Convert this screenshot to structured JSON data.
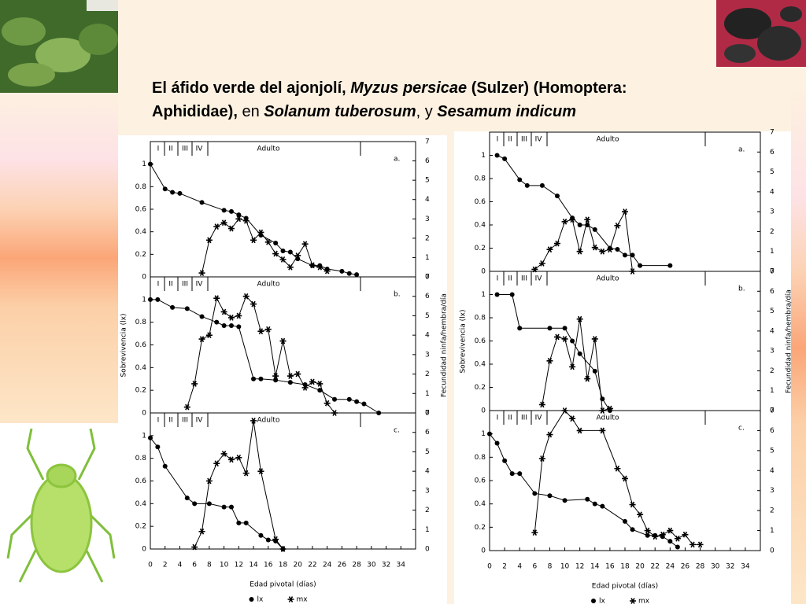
{
  "slide": {
    "title": [
      [
        {
          "text": "El áfido verde del ajonjolí, ",
          "bold": true,
          "italic": false
        },
        {
          "text": "Myzus persicae",
          "bold": true,
          "italic": true
        },
        {
          "text": " (Sulzer) (Homoptera:",
          "bold": true,
          "italic": false
        }
      ],
      [
        {
          "text": "Aphididae),",
          "bold": true,
          "italic": false
        },
        {
          "text": " en ",
          "bold": false,
          "italic": false
        },
        {
          "text": "Solanum tuberosum",
          "bold": true,
          "italic": true
        },
        {
          "text": ", y ",
          "bold": false,
          "italic": false
        },
        {
          "text": "Sesamum indicum",
          "bold": true,
          "italic": true
        }
      ]
    ]
  },
  "chart_data": [
    {
      "type": "line",
      "panel": "a.",
      "stages": [
        "I",
        "II",
        "III",
        "IV",
        "Adulto"
      ],
      "xlim": [
        0,
        36
      ],
      "ylim": [
        0,
        1.2
      ],
      "yticks": [
        0,
        0.2,
        0.4,
        0.6,
        0.8,
        1
      ],
      "y2lim": [
        0,
        7
      ],
      "y2ticks": [
        0,
        1,
        2,
        3,
        4,
        5,
        6,
        7
      ],
      "series": [
        {
          "color": "#000000",
          "marker": "circle",
          "x": [
            0,
            2,
            3,
            4,
            7,
            10,
            11,
            12,
            13,
            15,
            17,
            18,
            19,
            20,
            22,
            23,
            24,
            26,
            27,
            28
          ],
          "values": [
            1.0,
            0.78,
            0.75,
            0.74,
            0.66,
            0.59,
            0.58,
            0.55,
            0.52,
            0.37,
            0.3,
            0.23,
            0.22,
            0.16,
            0.1,
            0.1,
            0.07,
            0.05,
            0.03,
            0.02
          ]
        },
        {
          "color": "#000000",
          "marker": "star",
          "axis": "y2",
          "x": [
            7,
            8,
            9,
            10,
            11,
            12,
            13,
            14,
            15,
            16,
            17,
            18,
            19,
            20,
            21,
            22,
            23,
            24
          ],
          "values": [
            0.2,
            1.9,
            2.6,
            2.8,
            2.5,
            3.0,
            2.9,
            1.9,
            2.3,
            1.8,
            1.2,
            0.9,
            0.5,
            1.1,
            1.7,
            0.6,
            0.5,
            0.3
          ]
        }
      ]
    },
    {
      "type": "line",
      "panel": "b.",
      "stages": [
        "I",
        "II",
        "III",
        "IV",
        "Adulto"
      ],
      "xlim": [
        0,
        36
      ],
      "ylim": [
        0,
        1.2
      ],
      "yticks": [
        0,
        0.2,
        0.4,
        0.6,
        0.8,
        1
      ],
      "y2lim": [
        0,
        7
      ],
      "y2ticks": [
        0,
        1,
        2,
        3,
        4,
        5,
        6,
        7
      ],
      "y_label": "Sobrevivencia (lx)",
      "y2_label": "Fecundidad ninfa/hembra/día",
      "series": [
        {
          "color": "#000000",
          "marker": "circle",
          "x": [
            0,
            1,
            3,
            5,
            7,
            9,
            10,
            11,
            12,
            14,
            15,
            17,
            19,
            21,
            23,
            25,
            27,
            28,
            29,
            31
          ],
          "values": [
            1.0,
            1.0,
            0.93,
            0.92,
            0.85,
            0.8,
            0.77,
            0.77,
            0.76,
            0.3,
            0.3,
            0.29,
            0.27,
            0.25,
            0.2,
            0.12,
            0.12,
            0.1,
            0.08,
            0.0
          ]
        },
        {
          "color": "#000000",
          "marker": "star",
          "axis": "y2",
          "x": [
            5,
            6,
            7,
            8,
            9,
            10,
            11,
            12,
            13,
            14,
            15,
            16,
            17,
            18,
            19,
            20,
            21,
            22,
            23,
            24,
            25
          ],
          "values": [
            0.3,
            1.5,
            3.8,
            4.0,
            5.9,
            5.2,
            4.9,
            5.0,
            6.0,
            5.6,
            4.2,
            4.3,
            1.9,
            3.7,
            1.9,
            2.0,
            1.3,
            1.6,
            1.5,
            0.5,
            0.0
          ]
        }
      ]
    },
    {
      "type": "line",
      "panel": "c.",
      "stages": [
        "I",
        "II",
        "III",
        "IV",
        "Adulto"
      ],
      "xlim": [
        0,
        36
      ],
      "ylim": [
        0,
        1.2
      ],
      "yticks": [
        0,
        0.2,
        0.4,
        0.6,
        0.8,
        1
      ],
      "y2lim": [
        0,
        7
      ],
      "y2ticks": [
        0,
        1,
        2,
        3,
        4,
        5,
        6,
        7
      ],
      "xticks": [
        0,
        2,
        4,
        6,
        8,
        10,
        12,
        14,
        16,
        18,
        20,
        22,
        24,
        26,
        28,
        30,
        32,
        34
      ],
      "x_label": "Edad pivotal (días)",
      "series": [
        {
          "name": "lx",
          "color": "#000000",
          "marker": "circle",
          "x": [
            0,
            1,
            2,
            5,
            6,
            8,
            10,
            11,
            12,
            13,
            15,
            16,
            17,
            18
          ],
          "values": [
            0.98,
            0.9,
            0.73,
            0.45,
            0.4,
            0.4,
            0.37,
            0.37,
            0.23,
            0.23,
            0.12,
            0.08,
            0.07,
            0.0
          ]
        },
        {
          "name": "mx",
          "color": "#000000",
          "marker": "star",
          "axis": "y2",
          "x": [
            6,
            7,
            8,
            9,
            10,
            11,
            12,
            13,
            14,
            15,
            17,
            18
          ],
          "values": [
            0.1,
            0.9,
            3.5,
            4.4,
            4.9,
            4.6,
            4.7,
            3.9,
            6.6,
            4.0,
            0.5,
            0.0
          ]
        }
      ]
    },
    {
      "type": "line",
      "panel": "a.",
      "stages": [
        "I",
        "II",
        "III",
        "IV",
        "Adulto"
      ],
      "xlim": [
        0,
        36
      ],
      "ylim": [
        0,
        1.2
      ],
      "yticks": [
        0,
        0.2,
        0.4,
        0.6,
        0.8,
        1
      ],
      "y2lim": [
        0,
        7
      ],
      "y2ticks": [
        0,
        1,
        2,
        3,
        4,
        5,
        6,
        7
      ],
      "series": [
        {
          "color": "#000000",
          "marker": "circle",
          "x": [
            1,
            2,
            4,
            5,
            7,
            9,
            11,
            12,
            13,
            14,
            16,
            17,
            18,
            19,
            20,
            24
          ],
          "values": [
            1.0,
            0.97,
            0.79,
            0.74,
            0.74,
            0.65,
            0.46,
            0.4,
            0.4,
            0.36,
            0.2,
            0.19,
            0.14,
            0.14,
            0.05,
            0.05
          ]
        },
        {
          "color": "#000000",
          "marker": "star",
          "axis": "y2",
          "x": [
            6,
            7,
            8,
            9,
            10,
            11,
            12,
            13,
            14,
            15,
            16,
            17,
            18,
            19
          ],
          "values": [
            0.1,
            0.4,
            1.1,
            1.4,
            2.5,
            2.6,
            1.0,
            2.6,
            1.2,
            1.0,
            1.1,
            2.3,
            3.0,
            0.0
          ]
        }
      ]
    },
    {
      "type": "line",
      "panel": "b.",
      "stages": [
        "I",
        "II",
        "III",
        "IV",
        "Adulto"
      ],
      "xlim": [
        0,
        36
      ],
      "ylim": [
        0,
        1.2
      ],
      "yticks": [
        0,
        0.2,
        0.4,
        0.6,
        0.8,
        1
      ],
      "y2lim": [
        0,
        7
      ],
      "y2ticks": [
        0,
        1,
        2,
        3,
        4,
        5,
        6,
        7
      ],
      "y_label": "Sobrevivencia (lx)",
      "y2_label": "Fecundidad ninfa/hembra/día",
      "series": [
        {
          "color": "#000000",
          "marker": "circle",
          "x": [
            1,
            3,
            4,
            8,
            10,
            11,
            12,
            14,
            15,
            16
          ],
          "values": [
            1.0,
            1.0,
            0.71,
            0.71,
            0.71,
            0.6,
            0.49,
            0.34,
            0.1,
            0.0
          ]
        },
        {
          "color": "#000000",
          "marker": "star",
          "axis": "y2",
          "x": [
            7,
            8,
            9,
            10,
            11,
            12,
            13,
            14,
            15,
            16
          ],
          "values": [
            0.3,
            2.5,
            3.7,
            3.6,
            2.2,
            4.6,
            1.6,
            3.6,
            0.0,
            0.1
          ]
        }
      ]
    },
    {
      "type": "line",
      "panel": "c.",
      "stages": [
        "I",
        "II",
        "III",
        "IV",
        "Adulto"
      ],
      "xlim": [
        0,
        36
      ],
      "ylim": [
        0,
        1.2
      ],
      "yticks": [
        0,
        0.2,
        0.4,
        0.6,
        0.8,
        1
      ],
      "y2lim": [
        0,
        7
      ],
      "y2ticks": [
        0,
        1,
        2,
        3,
        4,
        5,
        6,
        7
      ],
      "xticks": [
        0,
        2,
        4,
        6,
        8,
        10,
        12,
        14,
        16,
        18,
        20,
        22,
        24,
        26,
        28,
        30,
        32,
        34
      ],
      "x_label": "Edad pivotal (días)",
      "series": [
        {
          "name": "lx",
          "color": "#000000",
          "marker": "circle",
          "x": [
            0,
            1,
            2,
            3,
            4,
            6,
            8,
            10,
            13,
            14,
            15,
            18,
            19,
            21,
            22,
            23,
            24,
            25
          ],
          "values": [
            1.0,
            0.92,
            0.77,
            0.66,
            0.66,
            0.49,
            0.47,
            0.43,
            0.44,
            0.4,
            0.38,
            0.25,
            0.18,
            0.13,
            0.13,
            0.12,
            0.08,
            0.03
          ]
        },
        {
          "name": "mx",
          "color": "#000000",
          "marker": "star",
          "axis": "y2",
          "x": [
            6,
            7,
            8,
            10,
            11,
            12,
            15,
            17,
            18,
            19,
            20,
            21,
            22,
            23,
            24,
            25,
            26,
            27,
            28
          ],
          "values": [
            0.9,
            4.6,
            5.8,
            7.0,
            6.6,
            6.0,
            6.0,
            4.1,
            3.6,
            2.3,
            1.8,
            1.0,
            0.7,
            0.8,
            1.0,
            0.6,
            0.8,
            0.3,
            0.3
          ]
        }
      ]
    }
  ]
}
